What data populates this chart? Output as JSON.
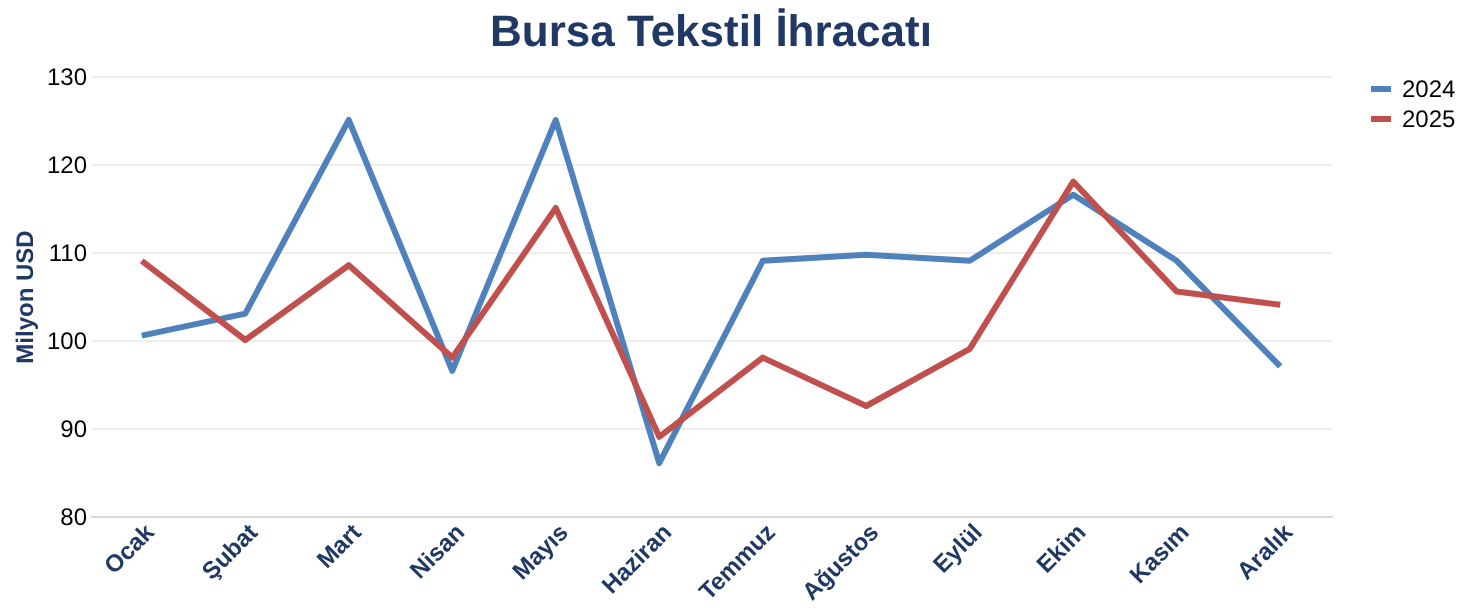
{
  "chart_data": {
    "type": "line",
    "title": "Bursa  Tekstil İhracatı",
    "ylabel": "Milyon USD",
    "categories": [
      "Ocak",
      "Şubat",
      "Mart",
      "Nisan",
      "Mayıs",
      "Haziran",
      "Temmuz",
      "Ağustos",
      "Eylül",
      "Ekim",
      "Kasım",
      "Aralık"
    ],
    "series": [
      {
        "name": "2024",
        "color": "#4f81bd",
        "values": [
          100.5,
          103,
          125,
          96.5,
          125,
          86,
          109,
          109.7,
          109,
          116.5,
          109,
          97
        ]
      },
      {
        "name": "2025",
        "color": "#c0504d",
        "values": [
          109,
          100,
          108.5,
          98,
          115,
          89,
          98,
          92.5,
          99,
          118,
          105.5,
          104
        ]
      }
    ],
    "ylim": [
      80,
      130
    ],
    "yticks": [
      80,
      90,
      100,
      110,
      120,
      130
    ],
    "grid": "y",
    "legend": "right",
    "marker": "none",
    "line_style": "solid"
  }
}
